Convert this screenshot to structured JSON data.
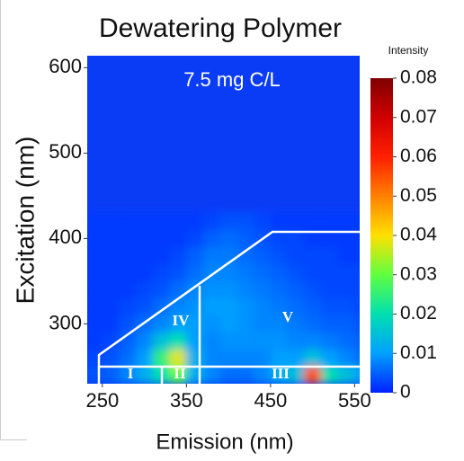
{
  "chart_data": {
    "type": "heatmap",
    "title": "Dewatering Polymer",
    "annotation": "7.5 mg C/L",
    "x_label": "Emission (nm)",
    "y_label": "Excitation (nm)",
    "colorbar_label": "Intensity",
    "regions": [
      "I",
      "II",
      "III",
      "IV",
      "V"
    ],
    "xlim": [
      232,
      556
    ],
    "xticks": [
      250,
      350,
      450,
      550
    ],
    "ylim": [
      230,
      614
    ],
    "yticks": [
      300,
      400,
      500,
      600
    ],
    "x": [
      240,
      260,
      280,
      300,
      320,
      340,
      360,
      380,
      400,
      420,
      440,
      460,
      480,
      500,
      520,
      540,
      560
    ],
    "y": [
      240,
      260,
      280,
      300,
      320,
      340,
      360,
      380,
      400,
      420
    ],
    "z": [
      [
        0.004,
        0.005,
        0.008,
        0.012,
        0.02,
        0.03,
        0.012,
        0.008,
        0.006,
        0.006,
        0.008,
        0.012,
        0.015,
        0.055,
        0.02,
        0.015,
        0.01
      ],
      [
        0.003,
        0.004,
        0.006,
        0.01,
        0.025,
        0.038,
        0.012,
        0.008,
        0.008,
        0.008,
        0.008,
        0.01,
        0.01,
        0.015,
        0.01,
        0.008,
        0.006
      ],
      [
        0.002,
        0.003,
        0.005,
        0.008,
        0.015,
        0.02,
        0.01,
        0.008,
        0.009,
        0.009,
        0.009,
        0.009,
        0.008,
        0.008,
        0.007,
        0.006,
        0.005
      ],
      [
        0.002,
        0.002,
        0.004,
        0.006,
        0.008,
        0.01,
        0.01,
        0.009,
        0.01,
        0.009,
        0.008,
        0.008,
        0.007,
        0.006,
        0.005,
        0.005,
        0.004
      ],
      [
        0.002,
        0.002,
        0.003,
        0.004,
        0.006,
        0.008,
        0.009,
        0.01,
        0.01,
        0.009,
        0.008,
        0.007,
        0.006,
        0.005,
        0.004,
        0.004,
        0.003
      ],
      [
        0.002,
        0.002,
        0.002,
        0.003,
        0.004,
        0.006,
        0.008,
        0.009,
        0.009,
        0.008,
        0.007,
        0.006,
        0.005,
        0.004,
        0.003,
        0.003,
        0.003
      ],
      [
        0.002,
        0.002,
        0.002,
        0.002,
        0.003,
        0.004,
        0.006,
        0.008,
        0.008,
        0.007,
        0.006,
        0.005,
        0.004,
        0.003,
        0.003,
        0.003,
        0.003
      ],
      [
        0.002,
        0.002,
        0.002,
        0.002,
        0.002,
        0.003,
        0.005,
        0.007,
        0.007,
        0.006,
        0.005,
        0.004,
        0.003,
        0.003,
        0.003,
        0.002,
        0.002
      ],
      [
        0.002,
        0.002,
        0.002,
        0.002,
        0.002,
        0.002,
        0.003,
        0.005,
        0.006,
        0.005,
        0.004,
        0.003,
        0.003,
        0.002,
        0.002,
        0.002,
        0.002
      ],
      [
        0.002,
        0.002,
        0.002,
        0.002,
        0.002,
        0.002,
        0.002,
        0.003,
        0.004,
        0.004,
        0.003,
        0.002,
        0.002,
        0.002,
        0.002,
        0.002,
        0.002
      ]
    ],
    "zlim": [
      0,
      0.08
    ],
    "zticks": [
      0,
      0.01,
      0.02,
      0.03,
      0.04,
      0.05,
      0.06,
      0.07,
      0.08
    ],
    "colorscale": [
      "#0020ff",
      "#00a0ff",
      "#00e0b0",
      "#60ff40",
      "#ffe000",
      "#ff8000",
      "#ff2000",
      "#d00000",
      "#800000"
    ]
  }
}
